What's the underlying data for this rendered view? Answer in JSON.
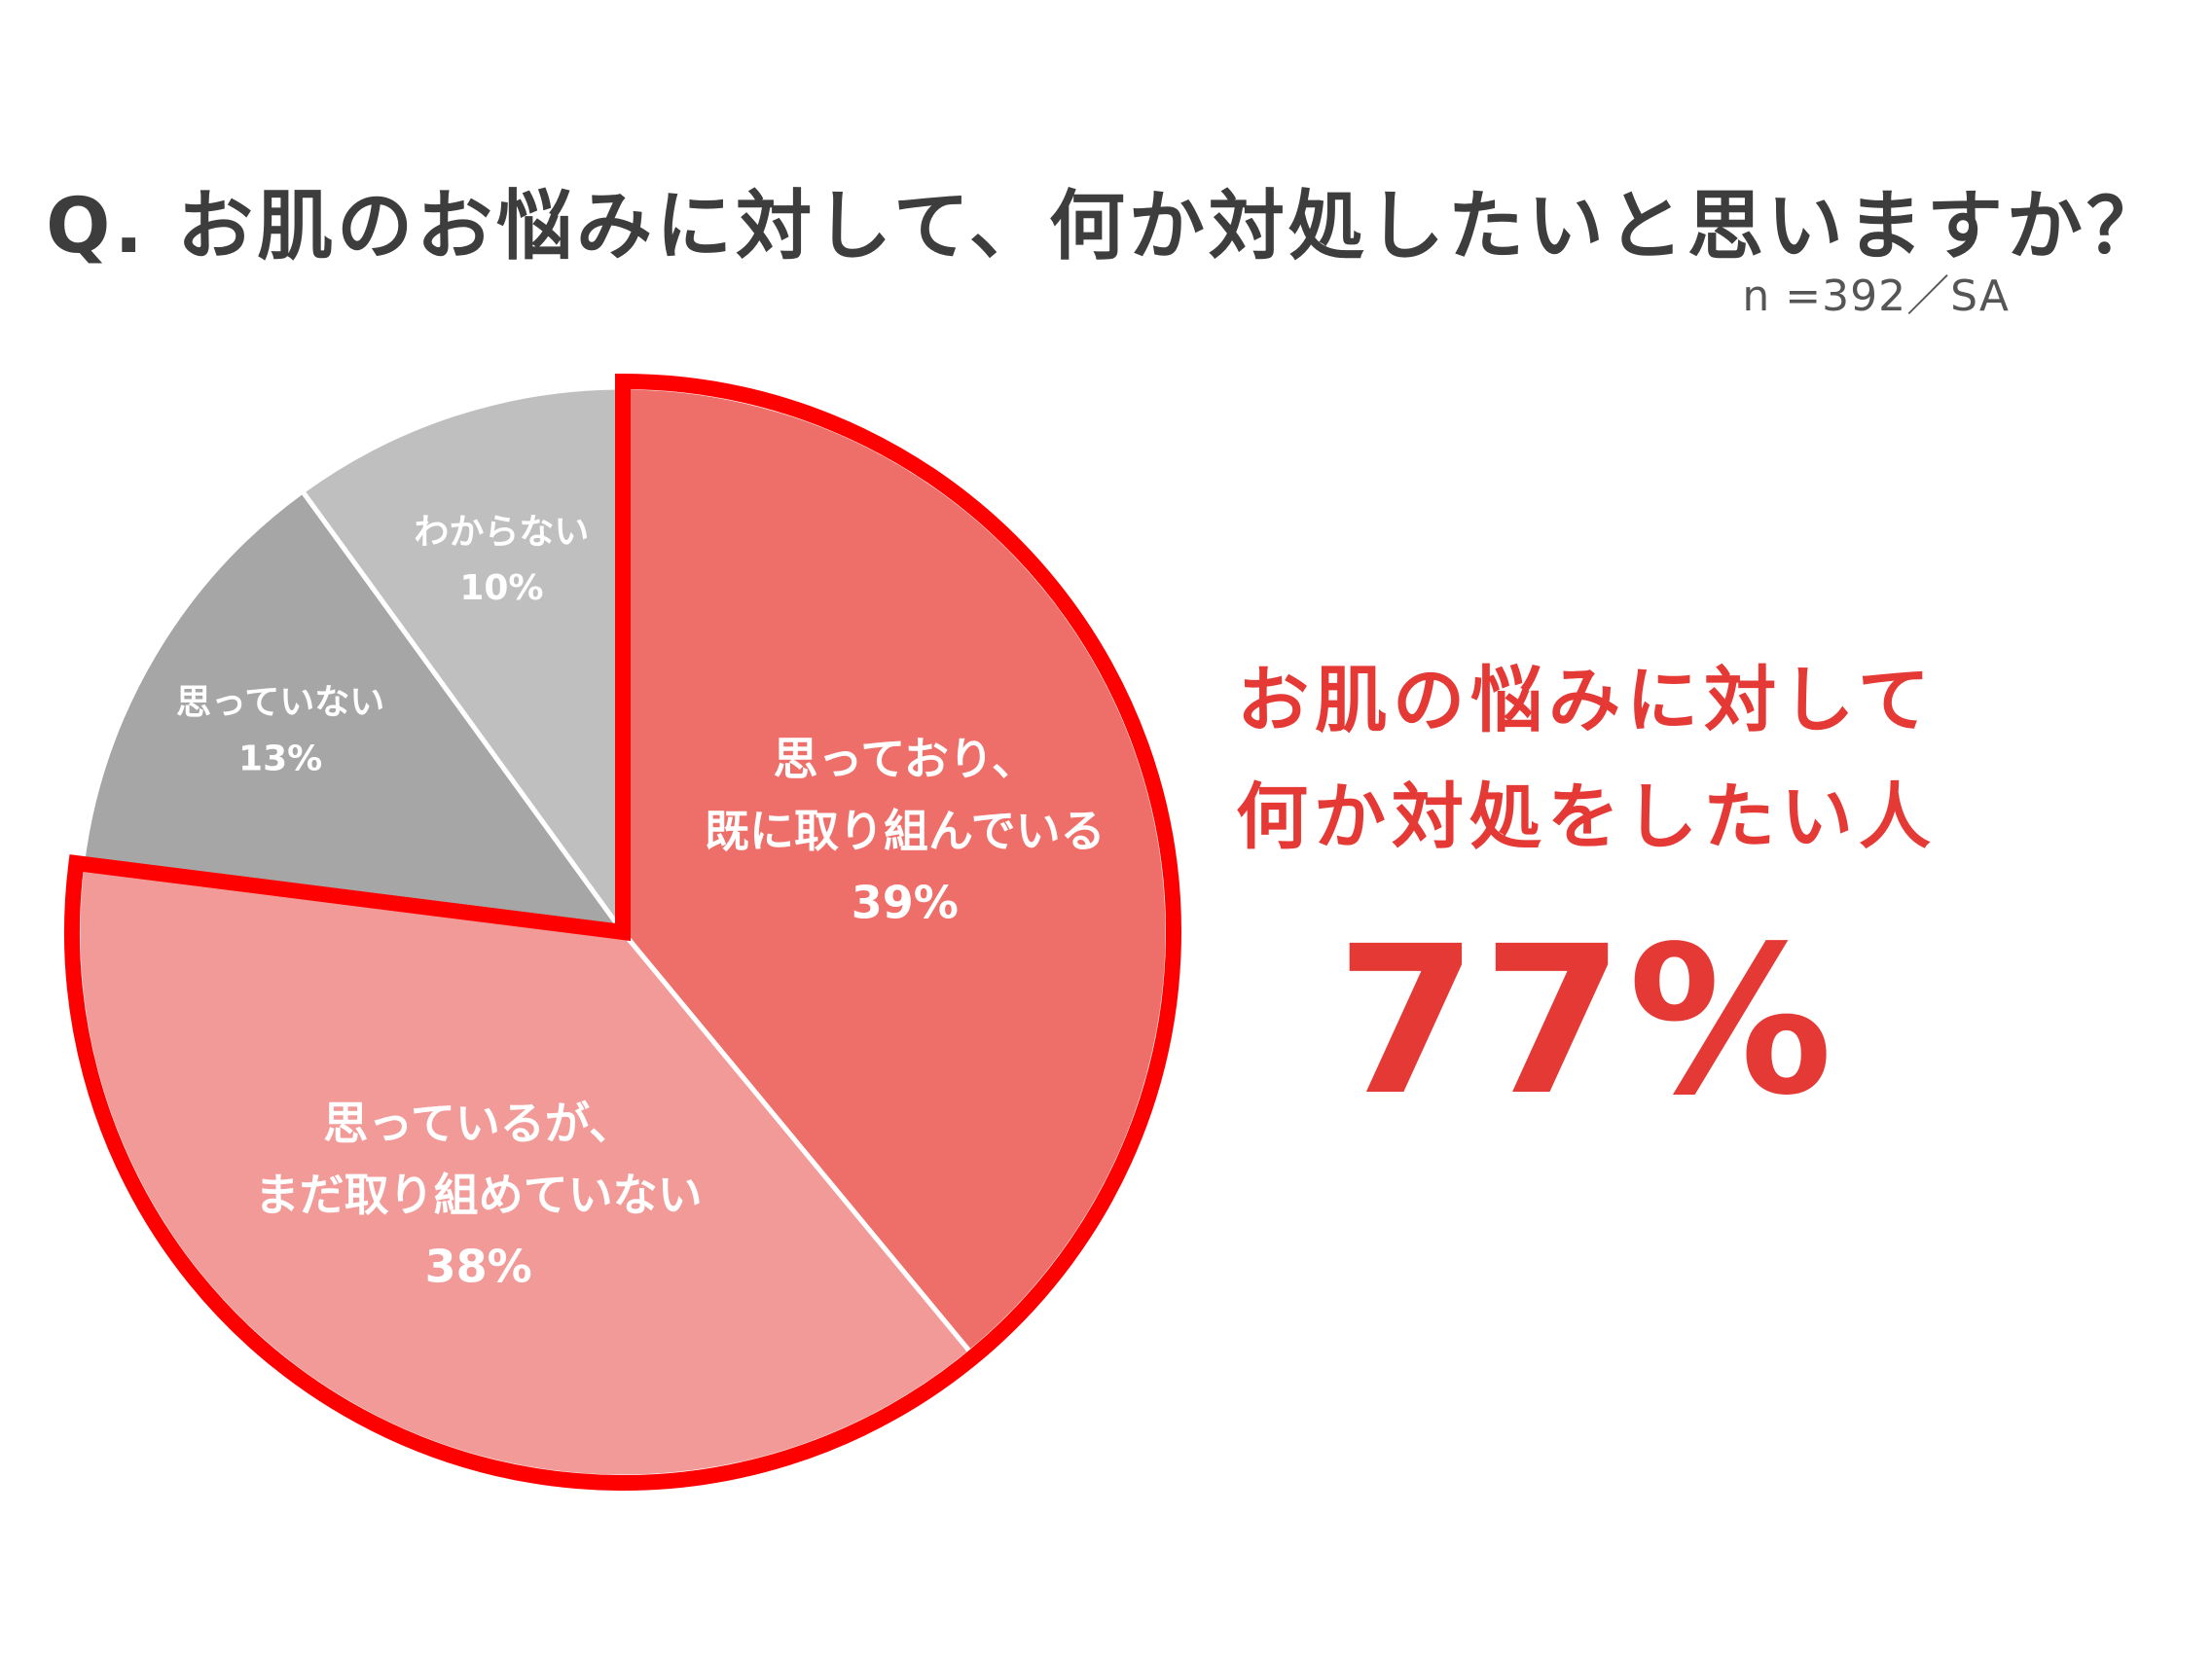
{
  "title": "Q. お肌のお悩みに対して、何か対処したいと思いますか？",
  "sample": "n =392／SA",
  "highlight": {
    "line1": "お肌の悩みに対して",
    "line2": "何か対処をしたい人",
    "value": "77%"
  },
  "chart_data": {
    "type": "pie",
    "start_angle_deg": 0,
    "direction": "clockwise",
    "slices": [
      {
        "label": [
          "思っており、",
          "既に取り組んでいる"
        ],
        "pct_label": "39%",
        "value": 39,
        "color": "#ee6f69",
        "highlighted": true
      },
      {
        "label": [
          "思っているが、",
          "まだ取り組めていない"
        ],
        "pct_label": "38%",
        "value": 38,
        "color": "#f29a97",
        "highlighted": true
      },
      {
        "label": [
          "思っていない"
        ],
        "pct_label": "13%",
        "value": 13,
        "color": "#a6a6a6",
        "highlighted": false
      },
      {
        "label": [
          "わからない"
        ],
        "pct_label": "10%",
        "value": 10,
        "color": "#bfbfbf",
        "highlighted": false
      }
    ],
    "highlight_outline_color": "#ff0000"
  }
}
